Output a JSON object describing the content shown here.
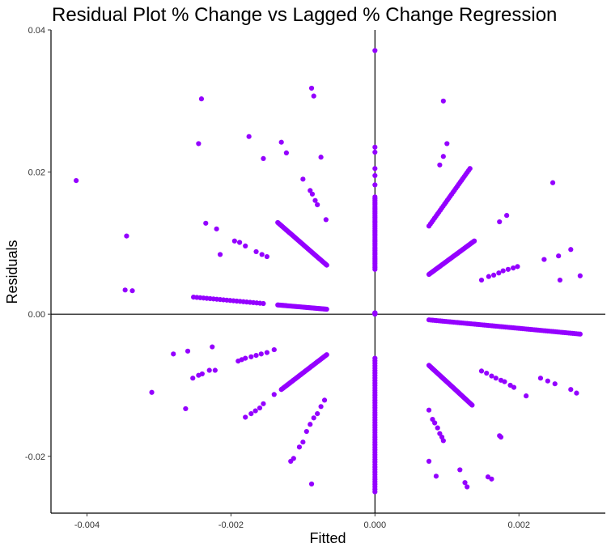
{
  "chart_data": {
    "type": "scatter",
    "title": "Residual Plot % Change vs Lagged % Change Regression",
    "xlabel": "Fitted",
    "ylabel": "Residuals",
    "xlim": [
      -0.0045,
      0.0032
    ],
    "ylim": [
      -0.028,
      0.04
    ],
    "xticks": [
      -0.004,
      -0.002,
      0.0,
      0.002
    ],
    "xtick_labels": [
      "-0.004",
      "-0.002",
      "0.000",
      "0.002"
    ],
    "yticks": [
      -0.02,
      0.0,
      0.02,
      0.04
    ],
    "ytick_labels": [
      "-0.02",
      "0.00",
      "0.02",
      "0.04"
    ],
    "reference_lines": {
      "x": 0,
      "y": 0
    },
    "grid": false,
    "legend": "none",
    "colors": {
      "points": "#9400ff",
      "axis": "#000000",
      "background": "#ffffff"
    },
    "series": [
      {
        "points": [
          [
            -0.00415,
            0.0188
          ],
          [
            -0.00345,
            0.011
          ],
          [
            -0.00347,
            0.0034
          ],
          [
            -0.00337,
            0.0033
          ],
          [
            -0.00241,
            0.0303
          ],
          [
            -0.00245,
            0.024
          ],
          [
            -0.00235,
            0.0128
          ],
          [
            -0.0022,
            0.012
          ],
          [
            -0.00215,
            0.0084
          ],
          [
            -0.00175,
            0.025
          ],
          [
            -0.00155,
            0.0219
          ],
          [
            -0.0013,
            0.0242
          ],
          [
            -0.00123,
            0.0227
          ],
          [
            -0.00088,
            0.0318
          ],
          [
            -0.00085,
            0.0307
          ],
          [
            -0.00075,
            0.0221
          ],
          [
            -0.001,
            0.019
          ],
          [
            -0.0009,
            0.0174
          ],
          [
            -0.00087,
            0.0169
          ],
          [
            -0.00083,
            0.016
          ],
          [
            -0.0008,
            0.0154
          ],
          [
            -0.00068,
            0.0133
          ],
          [
            -0.00195,
            0.0103
          ],
          [
            -0.00188,
            0.0101
          ],
          [
            -0.0018,
            0.0096
          ],
          [
            -0.00165,
            0.0088
          ],
          [
            -0.00157,
            0.0084
          ],
          [
            -0.0015,
            0.0081
          ],
          [
            -0.0028,
            -0.0056
          ],
          [
            -0.0026,
            -0.0052
          ],
          [
            -0.00253,
            -0.009
          ],
          [
            -0.00245,
            -0.0086
          ],
          [
            -0.0024,
            -0.0084
          ],
          [
            -0.0023,
            -0.0079
          ],
          [
            -0.00226,
            -0.0046
          ],
          [
            -0.00222,
            -0.0079
          ],
          [
            -0.0031,
            -0.011
          ],
          [
            -0.00263,
            -0.0133
          ],
          [
            -0.0019,
            -0.0066
          ],
          [
            -0.00185,
            -0.0064
          ],
          [
            -0.0018,
            -0.0062
          ],
          [
            -0.00172,
            -0.006
          ],
          [
            -0.00165,
            -0.0058
          ],
          [
            -0.00158,
            -0.0056
          ],
          [
            -0.0015,
            -0.0054
          ],
          [
            -0.0014,
            -0.005
          ],
          [
            -0.0018,
            -0.0145
          ],
          [
            -0.00172,
            -0.014
          ],
          [
            -0.00166,
            -0.0136
          ],
          [
            -0.0016,
            -0.0132
          ],
          [
            -0.00155,
            -0.0126
          ],
          [
            -0.0014,
            -0.0113
          ],
          [
            -0.00117,
            -0.0207
          ],
          [
            -0.00113,
            -0.0203
          ],
          [
            -0.00105,
            -0.0187
          ],
          [
            -0.001,
            -0.018
          ],
          [
            -0.00095,
            -0.0165
          ],
          [
            -0.0009,
            -0.0155
          ],
          [
            -0.00085,
            -0.0146
          ],
          [
            -0.0008,
            -0.014
          ],
          [
            -0.00075,
            -0.013
          ],
          [
            -0.0007,
            -0.0121
          ],
          [
            -0.00088,
            -0.0239
          ],
          [
            0.0,
            0.0371
          ],
          [
            0.0,
            0.0235
          ],
          [
            0.0,
            0.0228
          ],
          [
            0.0,
            0.0205
          ],
          [
            0.0,
            0.0195
          ],
          [
            0.0,
            0.0182
          ],
          [
            0.00095,
            0.03
          ],
          [
            0.00095,
            0.0222
          ],
          [
            0.001,
            0.024
          ],
          [
            0.0009,
            0.021
          ],
          [
            0.00173,
            0.013
          ],
          [
            0.00183,
            0.0139
          ],
          [
            0.00247,
            0.0185
          ],
          [
            0.00235,
            0.0077
          ],
          [
            0.00255,
            0.0082
          ],
          [
            0.00272,
            0.0091
          ],
          [
            0.00257,
            0.0048
          ],
          [
            0.00285,
            0.0054
          ],
          [
            0.00148,
            0.0048
          ],
          [
            0.00158,
            0.0053
          ],
          [
            0.00165,
            0.0055
          ],
          [
            0.00172,
            0.0058
          ],
          [
            0.00178,
            0.0061
          ],
          [
            0.00185,
            0.0063
          ],
          [
            0.00192,
            0.0065
          ],
          [
            0.00198,
            0.0067
          ],
          [
            0.00148,
            -0.008
          ],
          [
            0.00155,
            -0.0083
          ],
          [
            0.00162,
            -0.0087
          ],
          [
            0.00168,
            -0.009
          ],
          [
            0.00175,
            -0.0093
          ],
          [
            0.0018,
            -0.0095
          ],
          [
            0.00188,
            -0.01
          ],
          [
            0.00193,
            -0.0103
          ],
          [
            0.0021,
            -0.0115
          ],
          [
            0.0023,
            -0.009
          ],
          [
            0.0024,
            -0.0094
          ],
          [
            0.0025,
            -0.0098
          ],
          [
            0.00272,
            -0.0106
          ],
          [
            0.0028,
            -0.0111
          ],
          [
            0.00075,
            -0.0135
          ],
          [
            0.0008,
            -0.0148
          ],
          [
            0.00083,
            -0.0153
          ],
          [
            0.00087,
            -0.016
          ],
          [
            0.0009,
            -0.0168
          ],
          [
            0.00093,
            -0.0173
          ],
          [
            0.00095,
            -0.0178
          ],
          [
            0.00075,
            -0.0207
          ],
          [
            0.00085,
            -0.0228
          ],
          [
            0.00118,
            -0.0219
          ],
          [
            0.00125,
            -0.0237
          ],
          [
            0.00128,
            -0.0243
          ],
          [
            0.00157,
            -0.0229
          ],
          [
            0.00162,
            -0.0232
          ],
          [
            0.00173,
            -0.0171
          ],
          [
            0.00175,
            -0.0173
          ]
        ],
        "lines": [
          {
            "from": [
              -0.00135,
              0.0129
            ],
            "to": [
              -0.00067,
              0.0069
            ],
            "n": 48
          },
          {
            "from": [
              -0.00252,
              0.0024
            ],
            "to": [
              -0.00155,
              0.0015
            ],
            "n": 22
          },
          {
            "from": [
              -0.00135,
              0.0013
            ],
            "to": [
              -0.00067,
              0.0007
            ],
            "n": 42
          },
          {
            "from": [
              -0.0013,
              -0.0106
            ],
            "to": [
              -0.00067,
              -0.0057
            ],
            "n": 48
          },
          {
            "from": [
              0.0,
              0.0165
            ],
            "to": [
              0.0,
              0.0063
            ],
            "n": 40
          },
          {
            "from": [
              0.0,
              0.0002
            ],
            "to": [
              0.0,
              0.0
            ],
            "n": 6
          },
          {
            "from": [
              0.0,
              -0.0062
            ],
            "to": [
              0.0,
              -0.025
            ],
            "n": 55
          },
          {
            "from": [
              0.00075,
              0.0124
            ],
            "to": [
              0.00132,
              0.0205
            ],
            "n": 30
          },
          {
            "from": [
              0.00075,
              0.0056
            ],
            "to": [
              0.00138,
              0.0103
            ],
            "n": 50
          },
          {
            "from": [
              0.00075,
              -0.0008
            ],
            "to": [
              0.00285,
              -0.0028
            ],
            "n": 80
          },
          {
            "from": [
              0.00075,
              -0.0072
            ],
            "to": [
              0.00135,
              -0.0128
            ],
            "n": 50
          }
        ]
      }
    ]
  }
}
